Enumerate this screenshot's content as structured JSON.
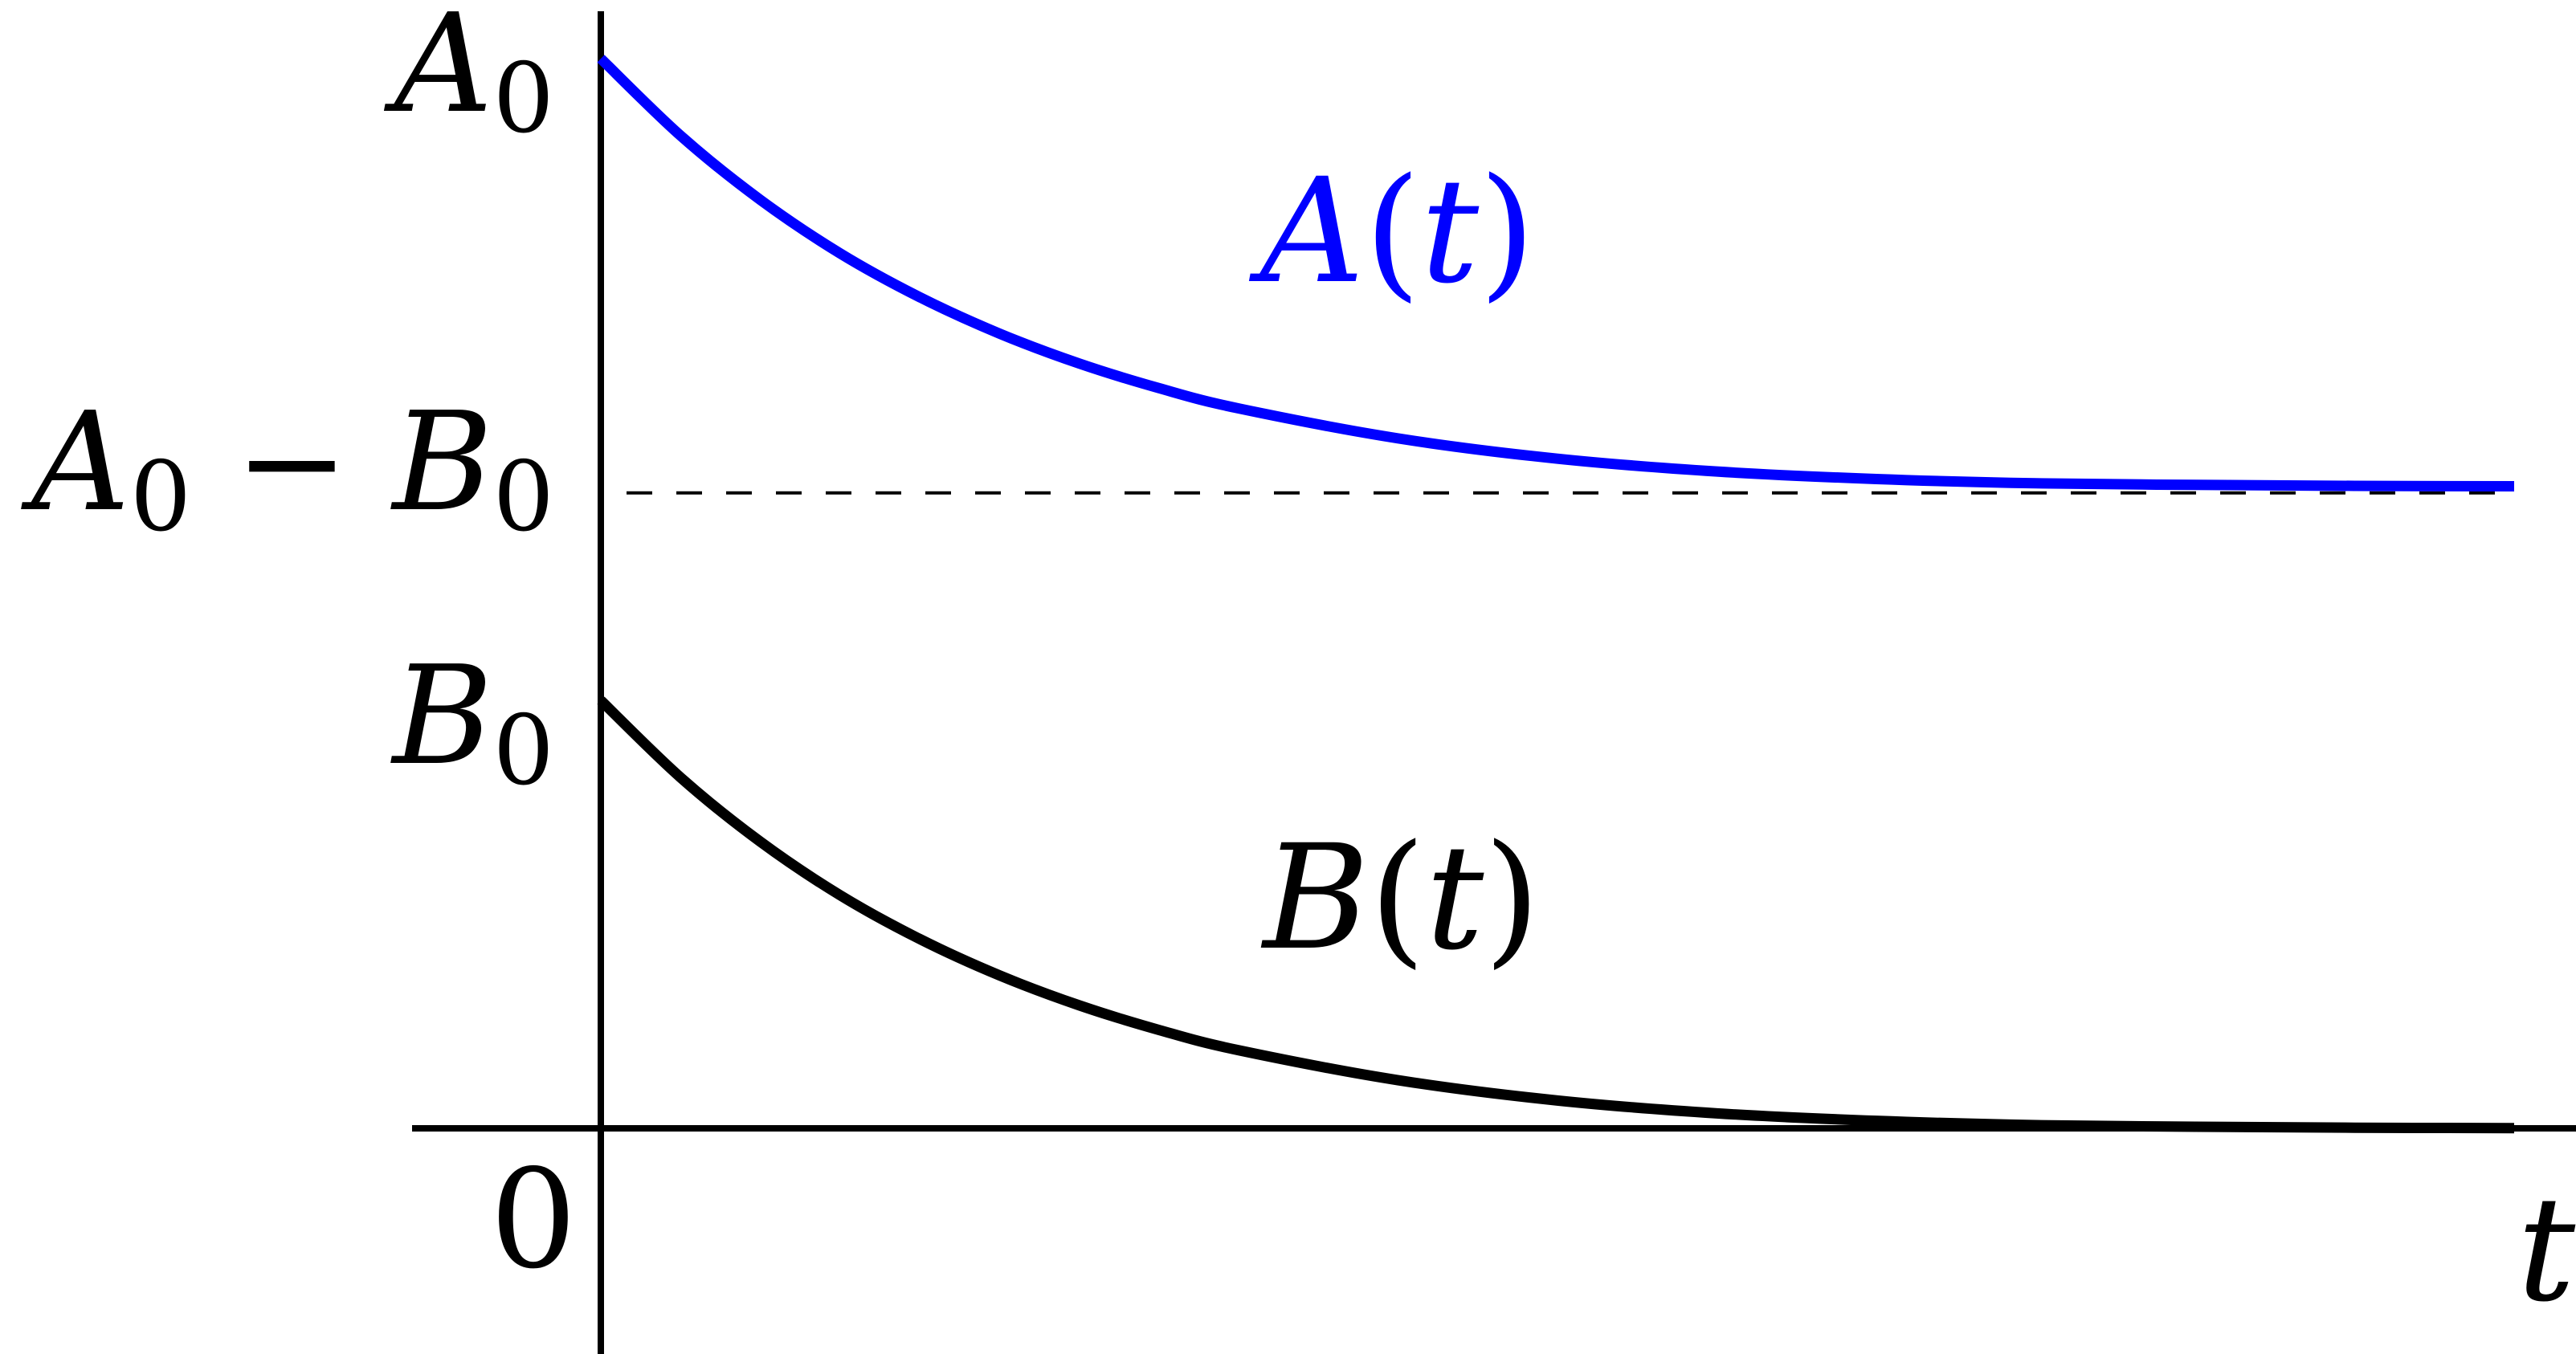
{
  "chart_data": {
    "type": "line",
    "title": "",
    "xlabel": "t",
    "ylabel": "",
    "x_tick_labels": [
      "0"
    ],
    "y_tick_labels": [
      {
        "value": 1.0,
        "symbol": "A",
        "subscript": "0"
      },
      {
        "value": 0.6,
        "symbol": "A",
        "subscript": "0",
        "minus": "−",
        "symbol2": "B",
        "subscript2": "0"
      },
      {
        "value": 0.4,
        "symbol": "B",
        "subscript": "0"
      }
    ],
    "series": [
      {
        "name": "A(t)",
        "symbol": "A",
        "argument": "t",
        "color": "#0000ff",
        "x": [
          0,
          0.25,
          0.5,
          0.75,
          1.0,
          1.25,
          1.5,
          1.75,
          2.0,
          2.5,
          3.0,
          3.5,
          4.0,
          4.5,
          5.0,
          5.5,
          6.0
        ],
        "y": [
          1.0,
          0.928,
          0.868,
          0.818,
          0.777,
          0.743,
          0.715,
          0.692,
          0.673,
          0.645,
          0.626,
          0.614,
          0.607,
          0.603,
          0.6015,
          0.6006,
          0.6002
        ]
      },
      {
        "name": "B(t)",
        "symbol": "B",
        "argument": "t",
        "color": "#000000",
        "x": [
          0,
          0.25,
          0.5,
          0.75,
          1.0,
          1.25,
          1.5,
          1.75,
          2.0,
          2.5,
          3.0,
          3.5,
          4.0,
          4.5,
          5.0,
          5.5,
          6.0
        ],
        "y": [
          0.4,
          0.328,
          0.268,
          0.218,
          0.177,
          0.143,
          0.115,
          0.092,
          0.073,
          0.045,
          0.026,
          0.014,
          0.007,
          0.003,
          0.0015,
          0.0006,
          0.0002
        ]
      }
    ],
    "asymptote": {
      "y": 0.6,
      "style": "dashed",
      "color": "#000000"
    },
    "xlim": [
      -0.6,
      6.2
    ],
    "ylim": [
      -0.23,
      1.0
    ],
    "grid": false,
    "legend": "none"
  }
}
